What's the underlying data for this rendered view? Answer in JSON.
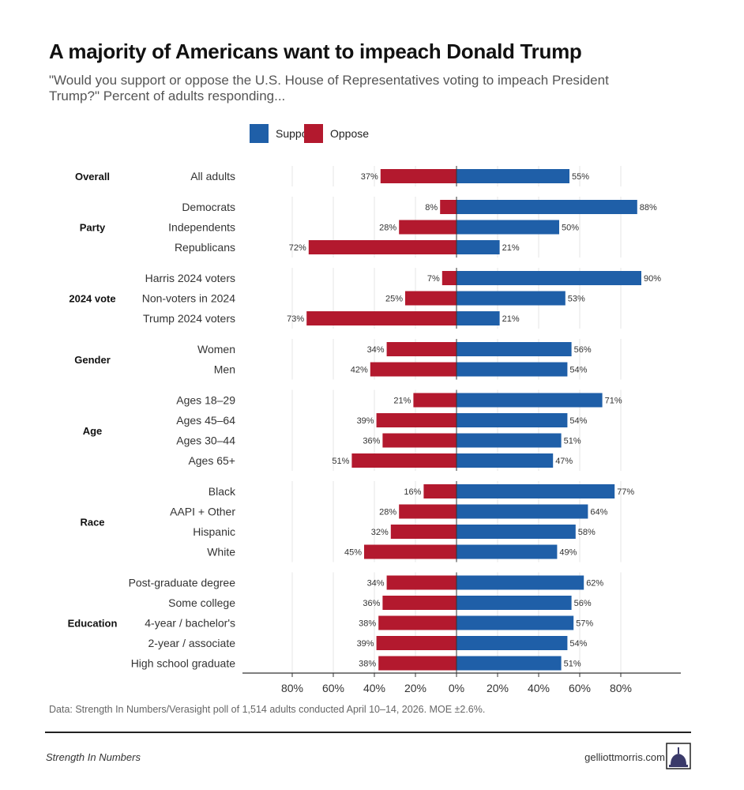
{
  "title": "A majority of Americans want to impeach Donald Trump",
  "subtitle": "\"Would you support or oppose the U.S. House of Representatives voting to impeach President Trump?\" Percent of adults responding...",
  "note": "Data: Strength In Numbers/Verasight poll of 1,514 adults conducted April 10–14, 2026. MOE ±2.6%.",
  "footer": {
    "brand": "Strength In Numbers",
    "site": "gelliottmorris.com"
  },
  "colors": {
    "support": "#1f5fa8",
    "oppose": "#b3192e"
  },
  "chart_data": {
    "type": "bar",
    "orientation": "horizontal-diverging",
    "legend": {
      "position": "top",
      "entries": [
        "Support",
        "Oppose"
      ]
    },
    "xlim": [
      -80,
      80
    ],
    "xticks": [
      "80%",
      "60%",
      "40%",
      "20%",
      "0%",
      "20%",
      "40%",
      "60%",
      "80%"
    ],
    "grid": true,
    "groups": [
      {
        "name": "Overall",
        "rows": [
          {
            "label": "All adults",
            "oppose": 37,
            "support": 55
          }
        ]
      },
      {
        "name": "Party",
        "rows": [
          {
            "label": "Democrats",
            "oppose": 8,
            "support": 88
          },
          {
            "label": "Independents",
            "oppose": 28,
            "support": 50
          },
          {
            "label": "Republicans",
            "oppose": 72,
            "support": 21
          }
        ]
      },
      {
        "name": "2024 vote",
        "rows": [
          {
            "label": "Harris 2024 voters",
            "oppose": 7,
            "support": 90
          },
          {
            "label": "Non-voters in 2024",
            "oppose": 25,
            "support": 53
          },
          {
            "label": "Trump 2024 voters",
            "oppose": 73,
            "support": 21
          }
        ]
      },
      {
        "name": "Gender",
        "rows": [
          {
            "label": "Women",
            "oppose": 34,
            "support": 56
          },
          {
            "label": "Men",
            "oppose": 42,
            "support": 54
          }
        ]
      },
      {
        "name": "Age",
        "rows": [
          {
            "label": "Ages 18–29",
            "oppose": 21,
            "support": 71
          },
          {
            "label": "Ages 45–64",
            "oppose": 39,
            "support": 54
          },
          {
            "label": "Ages 30–44",
            "oppose": 36,
            "support": 51
          },
          {
            "label": "Ages 65+",
            "oppose": 51,
            "support": 47
          }
        ]
      },
      {
        "name": "Race",
        "rows": [
          {
            "label": "Black",
            "oppose": 16,
            "support": 77
          },
          {
            "label": "AAPI + Other",
            "oppose": 28,
            "support": 64
          },
          {
            "label": "Hispanic",
            "oppose": 32,
            "support": 58
          },
          {
            "label": "White",
            "oppose": 45,
            "support": 49
          }
        ]
      },
      {
        "name": "Education",
        "rows": [
          {
            "label": "Post-graduate degree",
            "oppose": 34,
            "support": 62
          },
          {
            "label": "Some college",
            "oppose": 36,
            "support": 56
          },
          {
            "label": "4-year / bachelor's",
            "oppose": 38,
            "support": 57
          },
          {
            "label": "2-year / associate",
            "oppose": 39,
            "support": 54
          },
          {
            "label": "High school graduate",
            "oppose": 38,
            "support": 51
          }
        ]
      }
    ]
  }
}
